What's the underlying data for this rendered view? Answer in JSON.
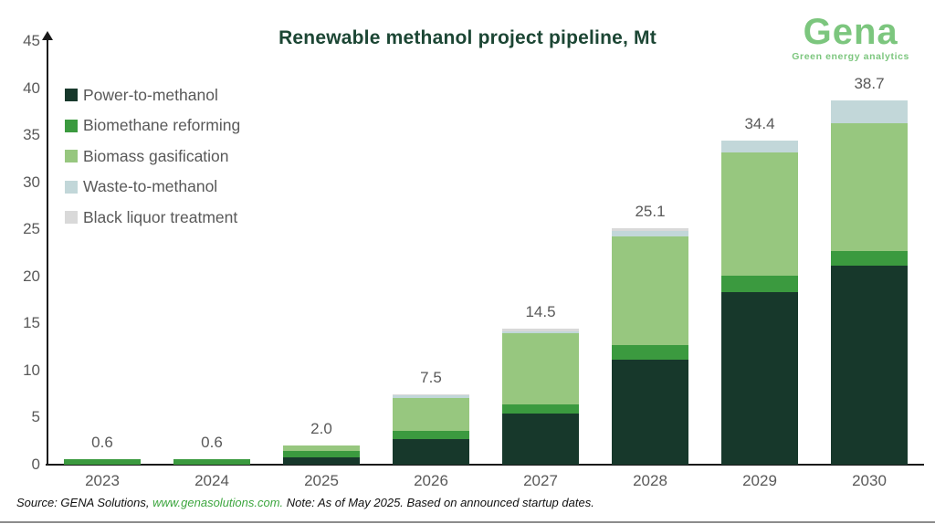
{
  "header": {
    "title": "Renewable methanol project pipeline, Mt",
    "logo": {
      "name": "Gena",
      "tagline": "Green energy analytics",
      "color": "#7cc67e"
    }
  },
  "chart_data": {
    "type": "bar",
    "variant": "stacked-column",
    "title": "Renewable methanol project pipeline, Mt",
    "unit": "Mt",
    "categories": [
      "2023",
      "2024",
      "2025",
      "2026",
      "2027",
      "2028",
      "2029",
      "2030"
    ],
    "totals": [
      0.6,
      0.6,
      2.0,
      7.5,
      14.5,
      25.1,
      34.4,
      38.7
    ],
    "total_labels": [
      "0.6",
      "0.6",
      "2.0",
      "7.5",
      "14.5",
      "25.1",
      "34.4",
      "38.7"
    ],
    "series": [
      {
        "name": "Power-to-methanol",
        "color": "#17382b",
        "values": [
          0,
          0,
          0.8,
          2.7,
          5.4,
          11.2,
          18.3,
          21.1
        ]
      },
      {
        "name": "Biomethane reforming",
        "color": "#3b9a3f",
        "values": [
          0.6,
          0.6,
          0.7,
          0.9,
          1.0,
          1.5,
          1.8,
          1.6
        ]
      },
      {
        "name": "Biomass gasification",
        "color": "#97c77f",
        "values": [
          0,
          0,
          0.5,
          3.45,
          7.6,
          11.5,
          13.1,
          13.6
        ]
      },
      {
        "name": "Waste-to-methanol",
        "color": "#c2d7d9",
        "values": [
          0,
          0,
          0,
          0.3,
          0.15,
          0.6,
          1.2,
          2.4
        ]
      },
      {
        "name": "Black liquor treatment",
        "color": "#d9d9d9",
        "values": [
          0,
          0,
          0,
          0.15,
          0.35,
          0.3,
          0,
          0
        ]
      }
    ],
    "y_axis": {
      "min": 0,
      "max": 45,
      "step": 5
    },
    "x_axis_label": "",
    "y_axis_label": "",
    "grid": false,
    "legend_position": "top-left",
    "stack_order_bottom_to_top": [
      "Power-to-methanol",
      "Biomethane reforming",
      "Biomass gasification",
      "Waste-to-methanol",
      "Black liquor treatment"
    ]
  },
  "footer": {
    "source_prefix": "Source: GENA Solutions, ",
    "source_link": "www.genasolutions.com.",
    "source_suffix": " Note: As of May 2025. Based on announced startup dates."
  }
}
